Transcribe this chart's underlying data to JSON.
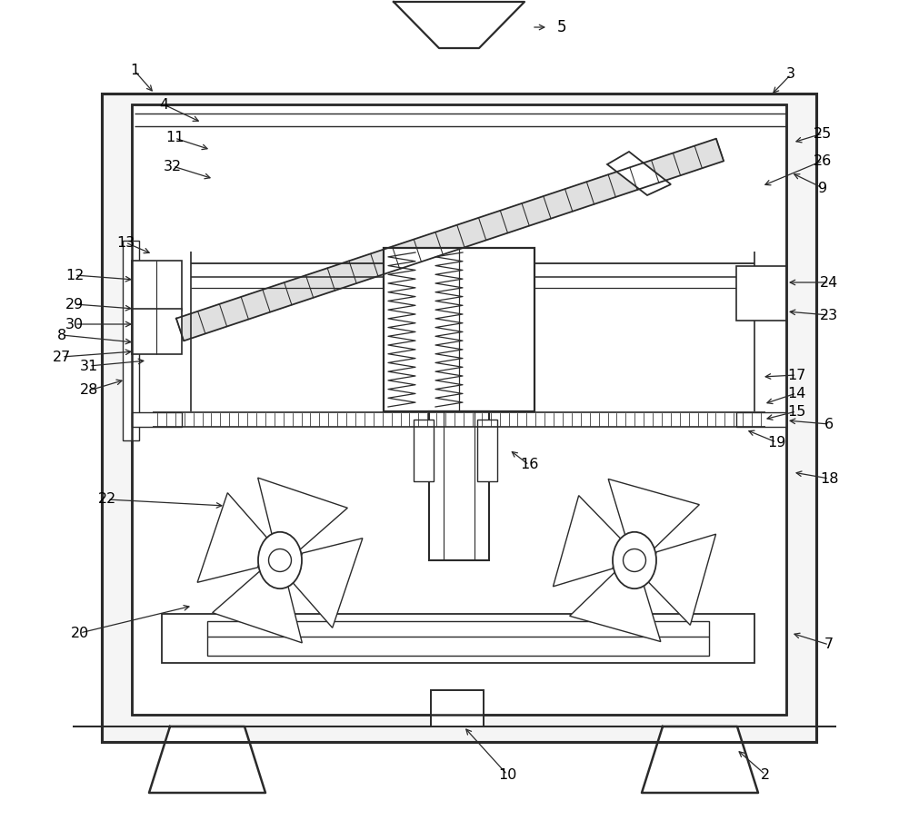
{
  "bg": "#ffffff",
  "lc": "#2a2a2a",
  "label_fs": 11.5
}
